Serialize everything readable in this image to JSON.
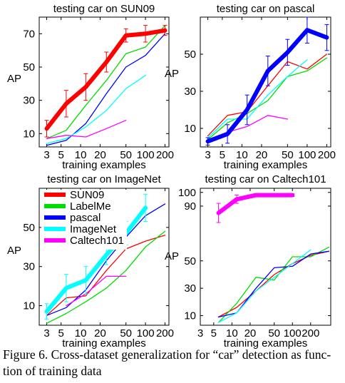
{
  "caption": {
    "line1": "Figure 6. Cross-dataset generalization for “car” detection as func-",
    "line2": "tion of training data"
  },
  "legend": [
    {
      "label": "SUN09",
      "color": "#ff0000"
    },
    {
      "label": "LabelMe",
      "color": "#00dd00"
    },
    {
      "label": "pascal",
      "color": "#0000ff"
    },
    {
      "label": "ImageNet",
      "color": "#00ffff"
    },
    {
      "label": "Caltech101",
      "color": "#ff00ff"
    }
  ],
  "chart_data": [
    {
      "type": "line",
      "title": "testing car on SUN09",
      "xlabel": "training examples",
      "ylabel": "AP",
      "xscale": "log",
      "xticks": [
        3,
        5,
        10,
        20,
        50,
        100,
        200
      ],
      "yticks": [
        10,
        30,
        50,
        70
      ],
      "xlim": [
        2.3,
        230
      ],
      "ylim": [
        2,
        80
      ],
      "highlight": "SUN09",
      "series": [
        {
          "name": "SUN09",
          "color": "#ff0000",
          "x": [
            3,
            6,
            12,
            25,
            50,
            100,
            200
          ],
          "y": [
            13,
            28,
            38,
            53,
            69,
            70,
            72
          ],
          "err": [
            5,
            8,
            8,
            6,
            4,
            5,
            3
          ]
        },
        {
          "name": "LabelMe",
          "color": "#00dd00",
          "x": [
            3,
            6,
            12,
            25,
            50,
            100,
            200
          ],
          "y": [
            7,
            12,
            27,
            42,
            58,
            62,
            75
          ]
        },
        {
          "name": "pascal",
          "color": "#0000ff",
          "x": [
            3,
            6,
            12,
            25,
            50,
            100,
            200
          ],
          "y": [
            3,
            6,
            16,
            34,
            50,
            57,
            70
          ]
        },
        {
          "name": "ImageNet",
          "color": "#00ffff",
          "x": [
            3,
            6,
            12,
            25,
            50,
            100
          ],
          "y": [
            4,
            7,
            14,
            24,
            37,
            45
          ]
        },
        {
          "name": "Caltech101",
          "color": "#ff00ff",
          "x": [
            3,
            6,
            12,
            25,
            50
          ],
          "y": [
            7,
            9,
            8,
            13,
            18
          ]
        }
      ]
    },
    {
      "type": "line",
      "title": "testing car on pascal",
      "xlabel": "training examples",
      "ylabel": "AP",
      "xscale": "log",
      "xticks": [
        3,
        5,
        10,
        20,
        50,
        100,
        200
      ],
      "yticks": [
        10,
        30,
        50
      ],
      "xlim": [
        2.3,
        230
      ],
      "ylim": [
        0,
        70
      ],
      "highlight": "pascal",
      "series": [
        {
          "name": "SUN09",
          "color": "#ff0000",
          "x": [
            3,
            6,
            12,
            25,
            50,
            100,
            200
          ],
          "y": [
            6,
            17,
            19,
            33,
            46,
            42,
            50
          ]
        },
        {
          "name": "LabelMe",
          "color": "#00dd00",
          "x": [
            3,
            6,
            12,
            25,
            50,
            100,
            200
          ],
          "y": [
            4,
            13,
            18,
            25,
            38,
            41,
            48
          ]
        },
        {
          "name": "pascal",
          "color": "#0000ff",
          "x": [
            3,
            6,
            12,
            25,
            50,
            100,
            200
          ],
          "y": [
            3,
            7,
            20,
            41,
            51,
            63,
            59
          ],
          "err": [
            2,
            5,
            8,
            8,
            7,
            7,
            7
          ]
        },
        {
          "name": "ImageNet",
          "color": "#00ffff",
          "x": [
            3,
            6,
            12,
            25,
            50,
            100
          ],
          "y": [
            5,
            15,
            15,
            28,
            38,
            47
          ]
        },
        {
          "name": "Caltech101",
          "color": "#ff00ff",
          "x": [
            3,
            6,
            12,
            25,
            50
          ],
          "y": [
            3,
            8,
            11,
            17,
            15
          ]
        }
      ]
    },
    {
      "type": "line",
      "title": "testing car on ImageNet",
      "xlabel": "training examples",
      "ylabel": "AP",
      "xscale": "log",
      "xticks": [
        3,
        5,
        10,
        20,
        50,
        100,
        200
      ],
      "yticks": [
        10,
        30,
        50
      ],
      "xlim": [
        2.3,
        230
      ],
      "ylim": [
        0,
        70
      ],
      "highlight": "ImageNet",
      "series": [
        {
          "name": "SUN09",
          "color": "#ff0000",
          "x": [
            3,
            6,
            12,
            25,
            50,
            100,
            200
          ],
          "y": [
            5,
            14,
            15,
            28,
            39,
            43,
            46
          ]
        },
        {
          "name": "LabelMe",
          "color": "#00dd00",
          "x": [
            3,
            6,
            12,
            25,
            50,
            100,
            200
          ],
          "y": [
            1,
            6,
            12,
            19,
            28,
            40,
            48
          ]
        },
        {
          "name": "pascal",
          "color": "#0000ff",
          "x": [
            3,
            6,
            12,
            25,
            50,
            100,
            200
          ],
          "y": [
            5,
            9,
            18,
            33,
            45,
            56,
            62
          ]
        },
        {
          "name": "ImageNet",
          "color": "#00ffff",
          "x": [
            3,
            6,
            12,
            25,
            50,
            100
          ],
          "y": [
            7,
            19,
            23,
            36,
            47,
            60
          ],
          "err": [
            4,
            7,
            7,
            5,
            6,
            7
          ]
        },
        {
          "name": "Caltech101",
          "color": "#ff00ff",
          "x": [
            6,
            12,
            25,
            50
          ],
          "y": [
            10,
            16,
            25,
            25
          ]
        }
      ]
    },
    {
      "type": "line",
      "title": "testing car on Caltech101",
      "xlabel": "training examples",
      "ylabel": "AP",
      "xscale": "log",
      "xticks": [
        3,
        5,
        10,
        20,
        50,
        100,
        200
      ],
      "yticks": [
        10,
        30,
        50,
        90,
        100
      ],
      "xlim": [
        3,
        430
      ],
      "ylim": [
        3,
        103
      ],
      "highlight": "Caltech101",
      "series": [
        {
          "name": "SUN09",
          "color": "#ff0000",
          "x": [
            6,
            12,
            25,
            50,
            100,
            200,
            400
          ],
          "y": [
            9,
            16,
            28,
            40,
            48,
            54,
            57
          ]
        },
        {
          "name": "LabelMe",
          "color": "#00dd00",
          "x": [
            6,
            12,
            25,
            50,
            100,
            200,
            400
          ],
          "y": [
            5,
            19,
            38,
            36,
            53,
            53,
            60
          ]
        },
        {
          "name": "pascal",
          "color": "#0000ff",
          "x": [
            6,
            12,
            25,
            50,
            100,
            200,
            400
          ],
          "y": [
            9,
            12,
            30,
            45,
            46,
            55,
            57
          ]
        },
        {
          "name": "ImageNet",
          "color": "#00ffff",
          "x": [
            6,
            12,
            25,
            50,
            100,
            200
          ],
          "y": [
            5,
            12,
            28,
            38,
            48,
            58
          ]
        },
        {
          "name": "Caltech101",
          "color": "#ff00ff",
          "x": [
            6,
            12,
            25,
            50,
            100
          ],
          "y": [
            85,
            95,
            98,
            98,
            98
          ],
          "err": [
            7,
            3,
            1,
            1,
            1
          ]
        }
      ]
    }
  ]
}
